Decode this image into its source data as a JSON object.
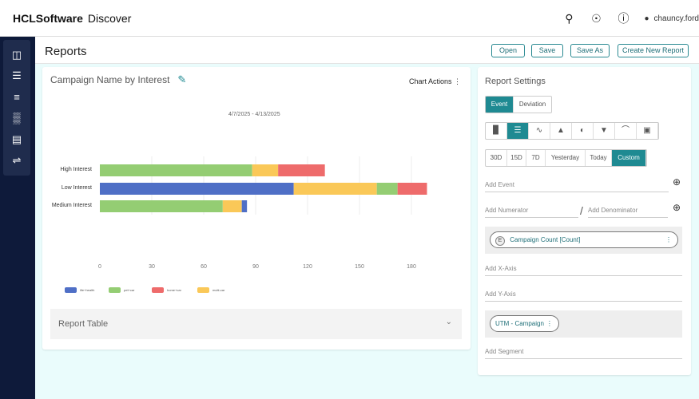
{
  "app": {
    "brand": "HCLSoftware",
    "product": "Discover",
    "user": "chauncy.ford"
  },
  "header_icons": [
    "search-icon",
    "globe-icon",
    "help-icon",
    "user-icon"
  ],
  "sidebar": {
    "icons": [
      "dashboard-icon",
      "list-icon",
      "search-list-icon",
      "bar-chart-icon",
      "report-icon",
      "sliders-icon"
    ]
  },
  "page": {
    "title": "Reports",
    "buttons": {
      "open": "Open",
      "save": "Save",
      "save_as": "Save As",
      "create": "Create New Report"
    }
  },
  "chart_card": {
    "title": "Campaign Name by Interest",
    "actions": "Chart Actions",
    "date_range": "4/7/2025 - 4/13/2025",
    "report_table": "Report Table"
  },
  "chart_data": {
    "type": "bar",
    "orientation": "horizontal",
    "stacked": true,
    "categories": [
      "High Interest",
      "Low Interest",
      "Medium Interest"
    ],
    "series": [
      {
        "name": "life+health",
        "color": "#4f6fc6",
        "values": [
          0,
          112,
          3
        ]
      },
      {
        "name": "pet+car",
        "color": "#94cd73",
        "values": [
          88,
          12,
          71
        ]
      },
      {
        "name": "home+car",
        "color": "#ee6b6b",
        "values": [
          27,
          17,
          0
        ]
      },
      {
        "name": "multi-car",
        "color": "#fac858",
        "values": [
          15,
          48,
          11
        ]
      }
    ],
    "xticks": [
      0,
      30,
      60,
      90,
      120,
      150,
      180
    ],
    "xlim": [
      0,
      190
    ],
    "legend": "bottom-left",
    "grid": true
  },
  "settings": {
    "title": "Report Settings",
    "type_tabs": [
      "Event",
      "Deviation"
    ],
    "active_type": "Event",
    "chart_types": [
      "bar-chart-icon",
      "horizontal-bar-icon",
      "line-chart-icon",
      "area-chart-icon",
      "pie-chart-icon",
      "funnel-icon",
      "gauge-icon",
      "number-card-icon"
    ],
    "active_chart": 1,
    "ranges": [
      "30D",
      "15D",
      "7D",
      "Yesterday",
      "Today",
      "Custom"
    ],
    "active_range": "Custom",
    "add_event": "Add Event",
    "add_numerator": "Add Numerator",
    "add_denominator": "Add Denominator",
    "event_chip": {
      "badge": "E",
      "label": "Campaign Count [Count]"
    },
    "add_x": "Add X-Axis",
    "add_y": "Add Y-Axis",
    "dimension_chip": "UTM - Campaign",
    "add_segment": "Add Segment"
  },
  "colors": {
    "accent": "#1f8a92",
    "nav": "#0e1a3a"
  }
}
